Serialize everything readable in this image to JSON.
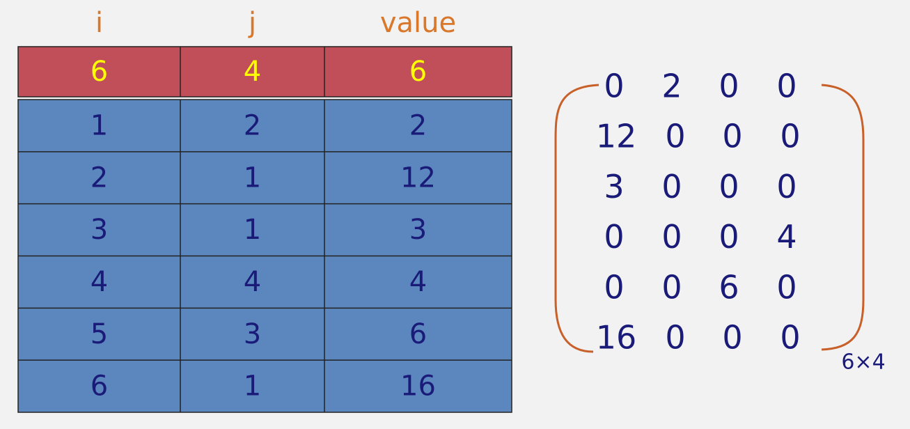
{
  "table": {
    "columns": [
      "i",
      "j",
      "value"
    ],
    "header_row": [
      6,
      4,
      6
    ],
    "rows": [
      [
        1,
        2,
        2
      ],
      [
        2,
        1,
        12
      ],
      [
        3,
        1,
        3
      ],
      [
        4,
        4,
        4
      ],
      [
        5,
        3,
        6
      ],
      [
        6,
        1,
        16
      ]
    ]
  },
  "matrix": {
    "rows": [
      [
        0,
        2,
        0,
        0
      ],
      [
        12,
        0,
        0,
        0
      ],
      [
        3,
        0,
        0,
        0
      ],
      [
        0,
        0,
        0,
        4
      ],
      [
        0,
        0,
        6,
        0
      ],
      [
        16,
        0,
        0,
        0
      ]
    ],
    "size_label": "6×4"
  }
}
